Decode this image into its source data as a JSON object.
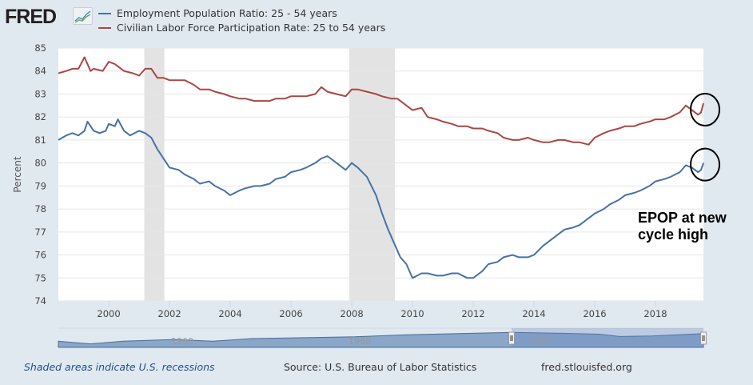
{
  "header": {
    "logo_text": "FRED",
    "logo_icon": "fred-chart-icon"
  },
  "footer": {
    "recession_note": "Shaded areas indicate U.S. recessions",
    "source": "Source: U.S. Bureau of Labor Statistics",
    "site": "fred.stlouisfed.org"
  },
  "annotation": {
    "line1": "EPOP at new",
    "line2": "cycle high"
  },
  "navigator": {
    "labels": [
      "1960",
      "1980",
      "2000"
    ],
    "handle_icon": "drag-handle-icon"
  },
  "colors": {
    "series_blue": "#4572a7",
    "series_red": "#aa4643",
    "recession": "#e3e3e3",
    "background": "#e1e9f0"
  },
  "chart_data": {
    "type": "line",
    "title": "",
    "xlabel": "",
    "ylabel": "Percent",
    "ylim": [
      74,
      85
    ],
    "xlim": [
      1998.34,
      2019.58
    ],
    "y_ticks": [
      74,
      75,
      76,
      77,
      78,
      79,
      80,
      81,
      82,
      83,
      84,
      85
    ],
    "x_ticks": [
      "2000",
      "2002",
      "2004",
      "2006",
      "2008",
      "2010",
      "2012",
      "2014",
      "2016",
      "2018"
    ],
    "x_tick_values": [
      2000,
      2002,
      2004,
      2006,
      2008,
      2010,
      2012,
      2014,
      2016,
      2018
    ],
    "grid": true,
    "legend_position": "top-left",
    "recessions": [
      [
        2001.17,
        2001.83
      ],
      [
        2007.92,
        2009.42
      ]
    ],
    "annotation_circles": [
      "lfpr-latest",
      "epop-latest"
    ],
    "series": [
      {
        "name": "Employment Population Ratio: 25 - 54 years",
        "color": "#4572a7",
        "x": [
          1998.34,
          1998.6,
          1998.8,
          1999.0,
          1999.2,
          1999.3,
          1999.5,
          1999.7,
          1999.9,
          2000.0,
          2000.2,
          2000.3,
          2000.5,
          2000.7,
          2001.0,
          2001.2,
          2001.4,
          2001.6,
          2001.8,
          2002.0,
          2002.3,
          2002.5,
          2002.8,
          2003.0,
          2003.3,
          2003.5,
          2003.8,
          2004.0,
          2004.3,
          2004.5,
          2004.8,
          2005.0,
          2005.3,
          2005.5,
          2005.8,
          2006.0,
          2006.3,
          2006.5,
          2006.8,
          2007.0,
          2007.2,
          2007.5,
          2007.8,
          2008.0,
          2008.2,
          2008.5,
          2008.8,
          2009.0,
          2009.2,
          2009.4,
          2009.6,
          2009.8,
          2010.0,
          2010.3,
          2010.5,
          2010.8,
          2011.0,
          2011.3,
          2011.5,
          2011.8,
          2012.0,
          2012.3,
          2012.5,
          2012.8,
          2013.0,
          2013.3,
          2013.5,
          2013.8,
          2014.0,
          2014.3,
          2014.5,
          2014.8,
          2015.0,
          2015.3,
          2015.5,
          2015.8,
          2016.0,
          2016.3,
          2016.5,
          2016.8,
          2017.0,
          2017.3,
          2017.5,
          2017.8,
          2018.0,
          2018.3,
          2018.5,
          2018.8,
          2019.0,
          2019.2,
          2019.4,
          2019.5,
          2019.58
        ],
        "values": [
          81.0,
          81.2,
          81.3,
          81.2,
          81.4,
          81.8,
          81.4,
          81.3,
          81.4,
          81.7,
          81.6,
          81.9,
          81.4,
          81.2,
          81.4,
          81.3,
          81.1,
          80.6,
          80.2,
          79.8,
          79.7,
          79.5,
          79.3,
          79.1,
          79.2,
          79.0,
          78.8,
          78.6,
          78.8,
          78.9,
          79.0,
          79.0,
          79.1,
          79.3,
          79.4,
          79.6,
          79.7,
          79.8,
          80.0,
          80.2,
          80.3,
          80.0,
          79.7,
          80.0,
          79.8,
          79.4,
          78.6,
          77.8,
          77.1,
          76.5,
          75.9,
          75.6,
          75.0,
          75.2,
          75.2,
          75.1,
          75.1,
          75.2,
          75.2,
          75.0,
          75.0,
          75.3,
          75.6,
          75.7,
          75.9,
          76.0,
          75.9,
          75.9,
          76.0,
          76.4,
          76.6,
          76.9,
          77.1,
          77.2,
          77.3,
          77.6,
          77.8,
          78.0,
          78.2,
          78.4,
          78.6,
          78.7,
          78.8,
          79.0,
          79.2,
          79.3,
          79.4,
          79.6,
          79.9,
          79.8,
          79.6,
          79.7,
          80.0
        ]
      },
      {
        "name": "Civilian Labor Force Participation Rate: 25 to 54 years",
        "color": "#aa4643",
        "x": [
          1998.34,
          1998.6,
          1998.8,
          1999.0,
          1999.2,
          1999.4,
          1999.5,
          1999.8,
          2000.0,
          2000.2,
          2000.5,
          2000.8,
          2001.0,
          2001.2,
          2001.4,
          2001.6,
          2001.8,
          2002.0,
          2002.3,
          2002.5,
          2002.8,
          2003.0,
          2003.3,
          2003.5,
          2003.8,
          2004.0,
          2004.3,
          2004.5,
          2004.8,
          2005.0,
          2005.3,
          2005.5,
          2005.8,
          2006.0,
          2006.3,
          2006.5,
          2006.8,
          2007.0,
          2007.2,
          2007.5,
          2007.8,
          2008.0,
          2008.2,
          2008.5,
          2008.8,
          2009.0,
          2009.3,
          2009.5,
          2009.8,
          2010.0,
          2010.3,
          2010.5,
          2010.8,
          2011.0,
          2011.3,
          2011.5,
          2011.8,
          2012.0,
          2012.3,
          2012.5,
          2012.8,
          2013.0,
          2013.3,
          2013.5,
          2013.8,
          2014.0,
          2014.3,
          2014.5,
          2014.8,
          2015.0,
          2015.3,
          2015.5,
          2015.8,
          2016.0,
          2016.3,
          2016.5,
          2016.8,
          2017.0,
          2017.3,
          2017.5,
          2017.8,
          2018.0,
          2018.3,
          2018.5,
          2018.8,
          2019.0,
          2019.2,
          2019.4,
          2019.5,
          2019.58
        ],
        "values": [
          83.9,
          84.0,
          84.1,
          84.1,
          84.6,
          84.0,
          84.1,
          84.0,
          84.4,
          84.3,
          84.0,
          83.9,
          83.8,
          84.1,
          84.1,
          83.7,
          83.7,
          83.6,
          83.6,
          83.6,
          83.4,
          83.2,
          83.2,
          83.1,
          83.0,
          82.9,
          82.8,
          82.8,
          82.7,
          82.7,
          82.7,
          82.8,
          82.8,
          82.9,
          82.9,
          82.9,
          83.0,
          83.3,
          83.1,
          83.0,
          82.9,
          83.2,
          83.2,
          83.1,
          83.0,
          82.9,
          82.8,
          82.8,
          82.5,
          82.3,
          82.4,
          82.0,
          81.9,
          81.8,
          81.7,
          81.6,
          81.6,
          81.5,
          81.5,
          81.4,
          81.3,
          81.1,
          81.0,
          81.0,
          81.1,
          81.0,
          80.9,
          80.9,
          81.0,
          81.0,
          80.9,
          80.9,
          80.8,
          81.1,
          81.3,
          81.4,
          81.5,
          81.6,
          81.6,
          81.7,
          81.8,
          81.9,
          81.9,
          82.0,
          82.2,
          82.5,
          82.3,
          82.1,
          82.2,
          82.6
        ]
      }
    ]
  },
  "legend": [
    {
      "label": "Employment Population Ratio: 25 - 54 years",
      "color": "#4572a7"
    },
    {
      "label": "Civilian Labor Force Participation Rate: 25 to 54 years",
      "color": "#aa4643"
    }
  ]
}
